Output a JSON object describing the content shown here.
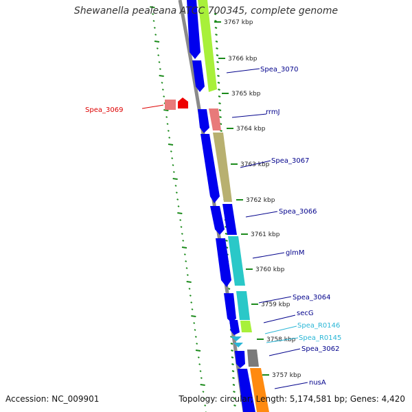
{
  "title": "Shewanella pealeana ATCC 700345, complete genome",
  "footer": {
    "accession": "Accession: NC_009901",
    "stats": "Topology: circular; Length: 5,174,581 bp; Genes: 4,420"
  },
  "colors": {
    "backbone": "#808080",
    "cds_forward": "#0000ee",
    "marker_dots": "#1a8a1a",
    "label_default": "#00008b",
    "label_highlight": "#dd0000",
    "label_rna": "#29b6d6"
  },
  "ticks": [
    "3767 kbp",
    "3766 kbp",
    "3765 kbp",
    "3764 kbp",
    "3763 kbp",
    "3762 kbp",
    "3761 kbp",
    "3760 kbp",
    "3759 kbp",
    "3758 kbp",
    "3757 kbp"
  ],
  "genes": [
    {
      "label": "Spea_3070",
      "color": "#00008b"
    },
    {
      "label": "Spea_3069",
      "color": "#dd0000"
    },
    {
      "label": "rrmJ",
      "color": "#00008b"
    },
    {
      "label": "Spea_3067",
      "color": "#00008b"
    },
    {
      "label": "Spea_3066",
      "color": "#00008b"
    },
    {
      "label": "glmM",
      "color": "#00008b"
    },
    {
      "label": "Spea_3064",
      "color": "#00008b"
    },
    {
      "label": "secG",
      "color": "#00008b"
    },
    {
      "label": "Spea_R0146",
      "color": "#29b6d6"
    },
    {
      "label": "Spea_R0145",
      "color": "#29b6d6"
    },
    {
      "label": "Spea_3062",
      "color": "#00008b"
    },
    {
      "label": "nusA",
      "color": "#00008b"
    }
  ]
}
